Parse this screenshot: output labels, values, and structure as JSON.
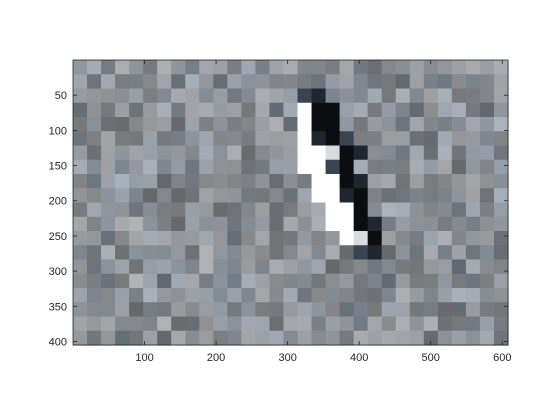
{
  "figure": {
    "background": "#ffffff"
  },
  "image": {
    "description_role": "pixelated grayscale photograph with a black-and-white bird (penguin-like) standing on a gray textured surface",
    "columns": 31,
    "rows": 20,
    "x_data_range": [
      0,
      608
    ],
    "y_data_range": [
      0,
      405
    ],
    "base_colors": [
      "#6e7379",
      "#7c8187",
      "#8a8f95",
      "#979ca3",
      "#a3a8af"
    ],
    "bird_colors": {
      "white": "#ffffff",
      "light": "#d8dadc",
      "black": "#0b0d10",
      "dark": "#1f2630",
      "mid_dark": "#3a4450"
    }
  },
  "axes": {
    "x_ticks": [
      {
        "value": 100,
        "label": "100"
      },
      {
        "value": 200,
        "label": "200"
      },
      {
        "value": 300,
        "label": "300"
      },
      {
        "value": 400,
        "label": "400"
      },
      {
        "value": 500,
        "label": "500"
      },
      {
        "value": 600,
        "label": "600"
      }
    ],
    "y_ticks": [
      {
        "value": 50,
        "label": "50"
      },
      {
        "value": 100,
        "label": "100"
      },
      {
        "value": 150,
        "label": "150"
      },
      {
        "value": 200,
        "label": "200"
      },
      {
        "value": 250,
        "label": "250"
      },
      {
        "value": 300,
        "label": "300"
      },
      {
        "value": 350,
        "label": "350"
      },
      {
        "value": 400,
        "label": "400"
      }
    ],
    "axis_color": "#262626"
  }
}
